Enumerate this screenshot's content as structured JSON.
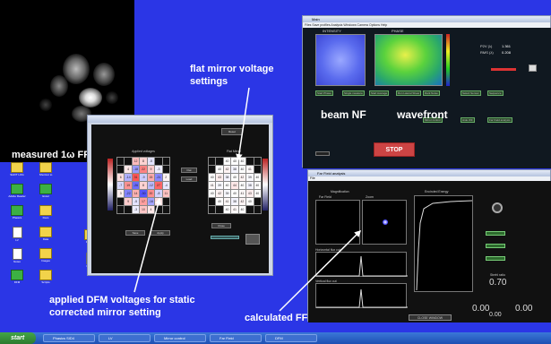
{
  "annotations": {
    "measured_ff": "measured 1ω FF",
    "flat_mirror": "flat mirror voltage settings",
    "applied_dfm": "applied DFM voltages for static corrected mirror setting",
    "calculated_ff": "calculated FF",
    "beam_nf": "beam NF",
    "wavefront": "wavefront"
  },
  "app_window": {
    "title": "Main",
    "menu": "Files  Save profiles  Analysis  Windows  Camera  Options  Help",
    "intensity_title": "INTENSITY",
    "phase_title": "PHASE",
    "stop_label": "STOP",
    "pv_label": "P2V (λ)",
    "pv_value": "1.361",
    "rms_label": "RMS (λ)",
    "rms_value": "0.208",
    "buttons": [
      "Start Phase",
      "Single measure",
      "Start Average",
      "Run Lateral Shear",
      "Dark Noise",
      "Select Sensor",
      "Sequence",
      "Hide WF",
      "Far Field analysis",
      "Mirror control"
    ]
  },
  "ff_window": {
    "title": "Far Field analysis",
    "menu": "File",
    "far_field_label": "Far Field",
    "zoom_label": "Zoom",
    "magnification_label": "Magnification",
    "energy_label": "Encircled Energy",
    "horizontal_label": "Horizontal flux cut",
    "vertical_label": "Vertical flux cut",
    "strehl_label": "Strehl ratio",
    "strehl_value": "0.70",
    "mag_x": "0.00",
    "mag_y": "0.00",
    "bottom_value": "0.00",
    "close_button": "CLOSE WINDOW"
  },
  "dfm_window": {
    "left_title": "Applied voltages",
    "right_title": "Flat Mirror",
    "buttons": [
      "Reset",
      "Flat",
      "Load",
      "Save",
      "Apply",
      "Close"
    ],
    "left_values": [
      [
        "",
        "",
        "12",
        "8",
        "-5",
        "",
        ""
      ],
      [
        "",
        "4",
        "-18",
        "22",
        "9",
        "-3",
        ""
      ],
      [
        "6",
        "-14",
        "31",
        "-9",
        "15",
        "-21",
        "2"
      ],
      [
        "-7",
        "19",
        "-26",
        "8",
        "-12",
        "27",
        "-4"
      ],
      [
        "3",
        "-22",
        "14",
        "-30",
        "20",
        "-8",
        "11"
      ],
      [
        "",
        "9",
        "-5",
        "17",
        "-16",
        "6",
        ""
      ],
      [
        "",
        "",
        "-3",
        "10",
        "4",
        "",
        ""
      ]
    ],
    "right_values": [
      [
        "",
        "",
        "40",
        "40",
        "40",
        "",
        ""
      ],
      [
        "",
        "40",
        "42",
        "38",
        "40",
        "41",
        ""
      ],
      [
        "40",
        "43",
        "38",
        "40",
        "42",
        "39",
        "40"
      ],
      [
        "41",
        "39",
        "40",
        "44",
        "40",
        "38",
        "40"
      ],
      [
        "40",
        "42",
        "39",
        "40",
        "41",
        "43",
        "40"
      ],
      [
        "",
        "40",
        "41",
        "38",
        "42",
        "40",
        ""
      ],
      [
        "",
        "",
        "40",
        "41",
        "40",
        "",
        ""
      ]
    ]
  },
  "desktop_icons": [
    {
      "label": "SHOT LOG",
      "type": "folder"
    },
    {
      "label": "Shortcut to",
      "type": "folder"
    },
    {
      "label": "Adobe Reader",
      "type": "app"
    },
    {
      "label": "Excel",
      "type": "app"
    },
    {
      "label": "Phasics",
      "type": "app"
    },
    {
      "label": "Docs",
      "type": "folder"
    },
    {
      "label": "LV",
      "type": "doc"
    },
    {
      "label": "Data",
      "type": "folder"
    },
    {
      "label": "Notes",
      "type": "doc"
    },
    {
      "label": "Images",
      "type": "folder"
    },
    {
      "label": "DFM",
      "type": "app"
    },
    {
      "label": "Scripts",
      "type": "folder"
    },
    {
      "label": "Results",
      "type": "folder"
    },
    {
      "label": "Report",
      "type": "doc"
    }
  ],
  "taskbar": {
    "start": "start",
    "items": [
      "Phasics SID4",
      "LV",
      "Mirror control",
      "Far Field",
      "DFM"
    ]
  },
  "colors": {
    "desktop": "#2b36e6",
    "stop": "#cc4444",
    "annotation": "#ffffff"
  }
}
